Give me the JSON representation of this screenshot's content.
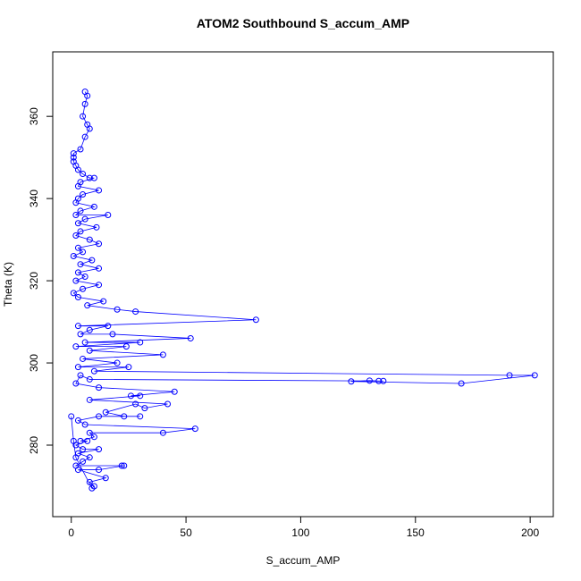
{
  "chart_data": {
    "type": "scatter-line",
    "title": "ATOM2 Southbound S_accum_AMP",
    "x_label": "S_accum_AMP",
    "y_label": "Theta (K)",
    "color": "#0000ff",
    "xlim": [
      -8.08,
      210.08
    ],
    "ylim": [
      262.6,
      375.7
    ],
    "xticks": [
      0,
      50,
      100,
      150,
      200
    ],
    "yticks": [
      280,
      300,
      320,
      340,
      360
    ],
    "x": [
      6,
      7,
      6,
      5,
      7,
      8,
      6,
      4,
      1,
      1,
      1,
      2,
      3,
      5,
      8,
      10,
      4,
      3,
      12,
      5,
      3,
      2,
      10,
      4,
      2,
      16,
      6,
      3,
      11,
      4,
      2,
      8,
      12,
      3,
      5,
      1,
      9,
      4,
      12,
      3,
      6,
      2,
      12,
      5,
      1,
      3,
      14,
      7,
      20,
      28,
      80.5,
      3,
      16,
      8,
      4,
      18,
      52,
      6,
      30,
      2,
      24,
      8,
      40,
      5,
      20,
      3,
      25,
      10,
      191,
      202,
      170,
      122,
      130,
      134,
      136,
      8,
      4,
      2,
      12,
      45,
      26,
      30,
      8,
      42,
      32,
      28,
      15,
      23,
      30,
      12,
      3,
      6,
      54,
      40,
      8,
      10,
      4,
      7,
      2,
      5,
      12,
      3,
      8,
      5,
      2,
      22,
      23,
      12,
      3,
      15,
      8,
      10,
      9,
      2,
      1,
      0
    ],
    "values": [
      366,
      365,
      363,
      360,
      358,
      357,
      355,
      352,
      351,
      350,
      349,
      348,
      347,
      346,
      345,
      345,
      344,
      343,
      342,
      341,
      340,
      339,
      338,
      337,
      336,
      336,
      335,
      334,
      333,
      332,
      331,
      330,
      329,
      328,
      327,
      326,
      325,
      324,
      323,
      322,
      321,
      320,
      319,
      318,
      317,
      316,
      315,
      314,
      313,
      312.5,
      310.5,
      309,
      309,
      308,
      307,
      307,
      306,
      305,
      305,
      304,
      304,
      303,
      302,
      301,
      300,
      299,
      299,
      298,
      297,
      297,
      295,
      295.5,
      295.7,
      295.6,
      295.6,
      296,
      297,
      295,
      294,
      293,
      292,
      292,
      291,
      290,
      289,
      290,
      288,
      287,
      287,
      287,
      286,
      285,
      284,
      283,
      283,
      282,
      281,
      281,
      280,
      279,
      279,
      278,
      277,
      276,
      275,
      275,
      275,
      274,
      274,
      272,
      271,
      270,
      269.5,
      277,
      281,
      287
    ]
  }
}
